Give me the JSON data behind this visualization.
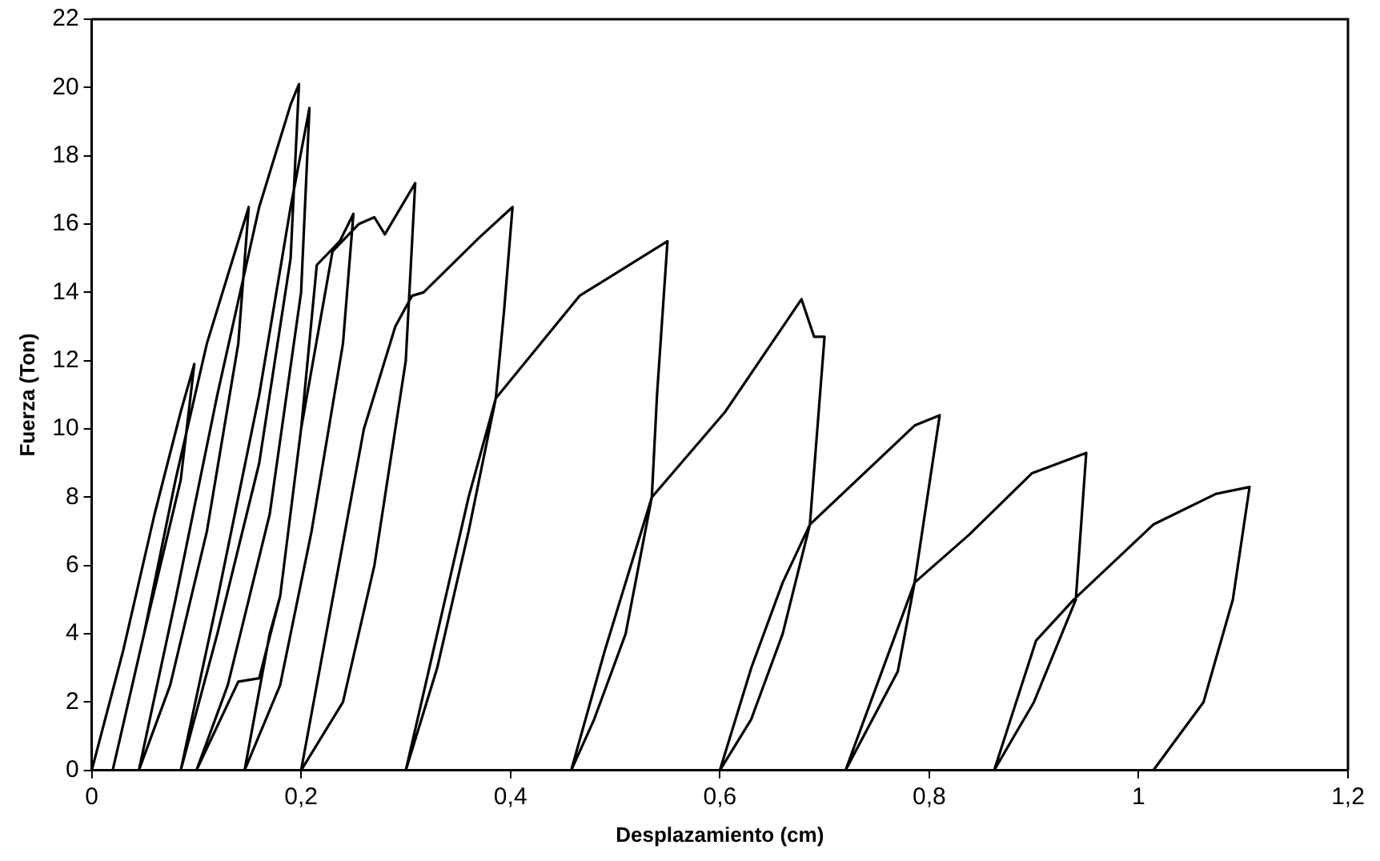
{
  "chart_data": {
    "type": "line",
    "xlabel": "Desplazamiento (cm)",
    "ylabel": "Fuerza (Ton)",
    "xlim": [
      0,
      1.2
    ],
    "ylim": [
      0,
      22
    ],
    "xticks": [
      0,
      {
        "value": 0.2,
        "label": "0,2"
      },
      {
        "value": 0.4,
        "label": "0,4"
      },
      {
        "value": 0.6,
        "label": "0,6"
      },
      {
        "value": 0.8,
        "label": "0,8"
      },
      1,
      {
        "value": 1.2,
        "label": "1,2"
      }
    ],
    "yticks": [
      0,
      2,
      4,
      6,
      8,
      10,
      12,
      14,
      16,
      18,
      20,
      22
    ],
    "grid": false,
    "legend": false,
    "marker": "none",
    "line_style": "solid",
    "series": [
      {
        "color": "#000000",
        "x": [
          0,
          0.03,
          0.06,
          0.085,
          0.098,
          0.085,
          0.05,
          0.02,
          0.05,
          0.08,
          0.11,
          0.13,
          0.15,
          0.14,
          0.11,
          0.075,
          0.045,
          0.08,
          0.12,
          0.16,
          0.19,
          0.198,
          0.19,
          0.16,
          0.12,
          0.085,
          0.12,
          0.16,
          0.19,
          0.208,
          0.2,
          0.17,
          0.13,
          0.1,
          0.14,
          0.16,
          0.18,
          0.2,
          0.215,
          0.237,
          0.25,
          0.24,
          0.21,
          0.18,
          0.146,
          0.17,
          0.18,
          0.2,
          0.23,
          0.255,
          0.27,
          0.28,
          0.309,
          0.3,
          0.27,
          0.24,
          0.2,
          0.23,
          0.26,
          0.29,
          0.306,
          0.317,
          0.37,
          0.402,
          0.394,
          0.386,
          0.36,
          0.33,
          0.3,
          0.33,
          0.36,
          0.386,
          0.466,
          0.55,
          0.54,
          0.535,
          0.51,
          0.48,
          0.458,
          0.49,
          0.515,
          0.535,
          0.605,
          0.678,
          0.69,
          0.7,
          0.686,
          0.66,
          0.63,
          0.6,
          0.63,
          0.66,
          0.686,
          0.786,
          0.81,
          0.786,
          0.77,
          0.72,
          0.75,
          0.786,
          0.838,
          0.898,
          0.95,
          0.94,
          0.9,
          0.862,
          0.902,
          0.938,
          1.014,
          1.074,
          1.106,
          1.09,
          1.062,
          1.014
        ],
        "values": [
          0,
          3.5,
          7.5,
          10.5,
          11.9,
          8.5,
          4,
          0,
          4,
          8.5,
          12.5,
          14.5,
          16.5,
          12.5,
          7,
          2.5,
          0,
          5,
          11,
          16.5,
          19.5,
          20.1,
          15,
          9,
          4,
          0,
          5,
          11,
          16.5,
          19.4,
          14,
          7.5,
          2.5,
          0,
          2.6,
          2.7,
          5.1,
          10,
          14.8,
          15.5,
          16.3,
          12.5,
          7,
          2.5,
          0,
          4,
          5.1,
          10,
          15.2,
          16,
          16.2,
          15.7,
          17.2,
          12,
          6,
          2,
          0,
          5,
          10,
          13,
          13.9,
          14,
          15.6,
          16.5,
          13.5,
          10.9,
          7,
          3,
          0,
          4,
          8,
          10.9,
          13.9,
          15.5,
          11,
          8,
          4,
          1.5,
          0,
          3.5,
          6,
          8,
          10.5,
          13.8,
          12.7,
          12.7,
          7.2,
          4,
          1.5,
          0,
          3,
          5.5,
          7.2,
          10.1,
          10.4,
          5.5,
          2.9,
          0,
          2.5,
          5.5,
          6.9,
          8.7,
          9.3,
          5,
          2,
          0,
          3.8,
          5,
          7.2,
          8.1,
          8.3,
          5,
          2,
          0
        ]
      }
    ]
  }
}
